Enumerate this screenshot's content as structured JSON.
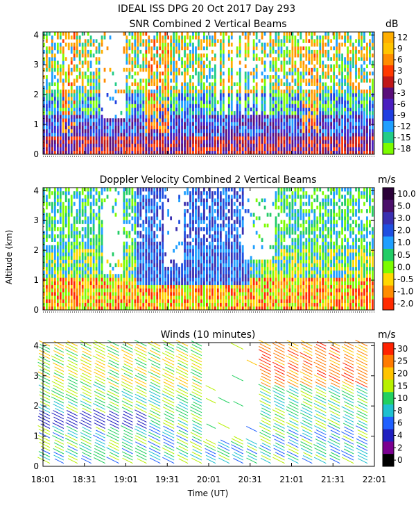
{
  "figure": {
    "title": "IDEAL ISS DPG  20 Oct 2017 Day 293",
    "y_axis_label": "Altitude (km)",
    "x_axis_label": "Time (UT)"
  },
  "chart_data": [
    {
      "type": "heatmap",
      "title": "SNR Combined 2 Vertical Beams",
      "unit": "dB",
      "xlabel": "Time (UT)",
      "ylabel": "Altitude (km)",
      "x_ticks": [
        "18:01",
        "18:31",
        "19:01",
        "19:31",
        "20:01",
        "20:31",
        "21:01",
        "21:31",
        "22:01"
      ],
      "y_ticks": [
        "0",
        "1",
        "2",
        "3",
        "4"
      ],
      "ylim": [
        0,
        4.1
      ],
      "colorbar": {
        "labels": [
          "12",
          "9",
          "6",
          "3",
          "0",
          "-3",
          "-6",
          "-9",
          "-12",
          "-15",
          "-18"
        ],
        "colors": [
          "#ffae00",
          "#ffc400",
          "#ff8c00",
          "#ff3a00",
          "#c01818",
          "#5a0f7a",
          "#4a1fbf",
          "#1f3fe0",
          "#1f9fff",
          "#22cc88",
          "#7cfc00"
        ]
      }
    },
    {
      "type": "heatmap",
      "title": "Doppler Velocity Combined 2 Vertical Beams",
      "unit": "m/s",
      "xlabel": "Time (UT)",
      "ylabel": "Altitude (km)",
      "x_ticks": [
        "18:01",
        "18:31",
        "19:01",
        "19:31",
        "20:01",
        "20:31",
        "21:01",
        "21:31",
        "22:01"
      ],
      "y_ticks": [
        "0",
        "1",
        "2",
        "3",
        "4"
      ],
      "ylim": [
        0,
        4.1
      ],
      "colorbar": {
        "labels": [
          "10.0",
          "5.0",
          "3.0",
          "2.0",
          "1.0",
          "0.5",
          "0.0",
          "-0.5",
          "-1.0",
          "-2.0"
        ],
        "colors": [
          "#2a0038",
          "#4a0f6a",
          "#3a2fb0",
          "#1f4fe0",
          "#1f9fff",
          "#22cc66",
          "#7cfc00",
          "#ffd700",
          "#ff8c00",
          "#ff2a00"
        ]
      }
    },
    {
      "type": "scatter",
      "title": "Winds (10 minutes)",
      "unit": "m/s",
      "xlabel": "Time (UT)",
      "ylabel": "Altitude (km)",
      "x_ticks": [
        "18:01",
        "18:31",
        "19:01",
        "19:31",
        "20:01",
        "20:31",
        "21:01",
        "21:31",
        "22:01"
      ],
      "y_ticks": [
        "0",
        "1",
        "2",
        "3",
        "4"
      ],
      "ylim": [
        0,
        4.1
      ],
      "colorbar": {
        "labels": [
          "30",
          "25",
          "20",
          "15",
          "10",
          "8",
          "6",
          "4",
          "2",
          "0"
        ],
        "colors": [
          "#ff2200",
          "#ff7a00",
          "#ffc400",
          "#b8f000",
          "#22d060",
          "#1fc0d0",
          "#2060ff",
          "#2020c0",
          "#7a0090",
          "#000000"
        ]
      }
    }
  ]
}
